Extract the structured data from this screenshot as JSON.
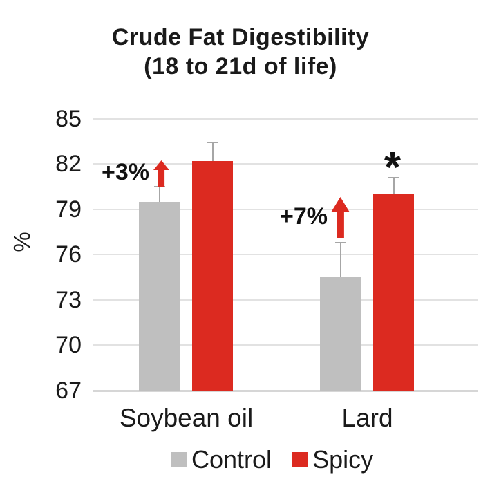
{
  "title": {
    "line1": "Crude Fat Digestibility",
    "line2": "(18 to 21d of life)"
  },
  "chart_data": {
    "type": "bar",
    "title": "Crude Fat Digestibility (18 to 21d of life)",
    "xlabel": "",
    "ylabel": "%",
    "ylim": [
      67,
      85
    ],
    "yticks": [
      85,
      82,
      79,
      76,
      73,
      70,
      67
    ],
    "grid": true,
    "categories": [
      "Soybean oil",
      "Lard"
    ],
    "series": [
      {
        "name": "Control",
        "color": "#bfbfbf",
        "values": [
          79.5,
          74.5
        ],
        "errors_plus": [
          1.0,
          2.3
        ]
      },
      {
        "name": "Spicy",
        "color": "#dc2a20",
        "values": [
          82.2,
          80.0
        ],
        "errors_plus": [
          1.2,
          1.1
        ]
      }
    ],
    "error_bar_color": "#a6a6a6",
    "legend_position": "bottom",
    "legend": [
      {
        "label": "Control",
        "color": "#bfbfbf"
      },
      {
        "label": "Spicy",
        "color": "#dc2a20"
      }
    ],
    "annotations": [
      {
        "id": "soybean-increase",
        "text": "+3%",
        "type": "label-with-up-arrow",
        "arrow_color": "#dc2a20",
        "target": "Soybean oil"
      },
      {
        "id": "lard-increase",
        "text": "+7%",
        "type": "label-with-up-arrow",
        "arrow_color": "#dc2a20",
        "target": "Lard"
      },
      {
        "id": "lard-spicy-significance",
        "text": "*",
        "type": "significance-marker",
        "target": "Lard / Spicy"
      }
    ]
  }
}
